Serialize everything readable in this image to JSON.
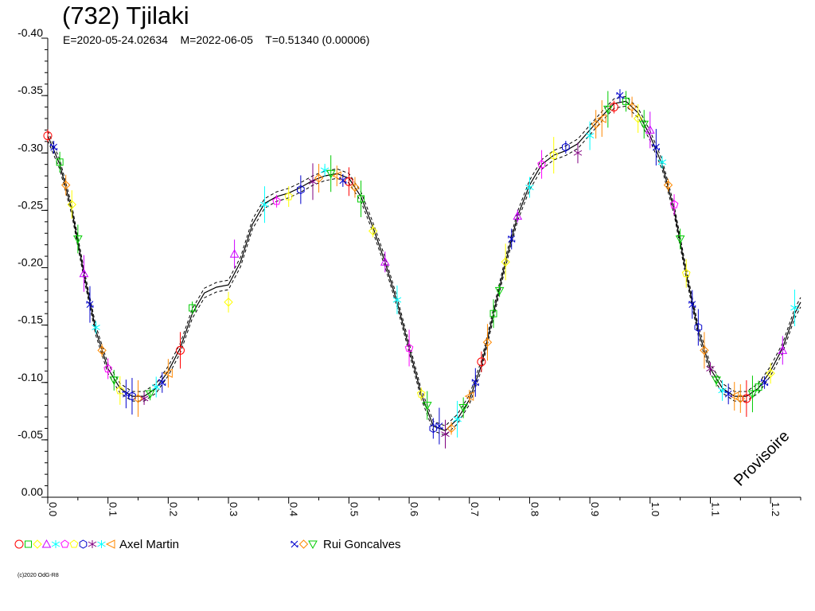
{
  "header": {
    "title": "(732) Tjilaki",
    "epoch": "E=2020-05-24.02634",
    "date": "M=2022-06-05",
    "period": "T=0.51340 (0.00006)"
  },
  "watermark": "Provisoire",
  "copyright": "(c)2020 OdG-R8",
  "legend": [
    {
      "name": "Axel Martin",
      "symbols": [
        "circle",
        "square",
        "diamond",
        "triangle-up",
        "star",
        "pentagon",
        "pentagon",
        "hexagon",
        "star6",
        "star6",
        "triangle-left"
      ],
      "colors": [
        "#ff0000",
        "#00cc00",
        "#ffff00",
        "#cc00ff",
        "#00ffff",
        "#ff00ff",
        "#ffff00",
        "#0000cc",
        "#800080",
        "#00ffff",
        "#ff8800"
      ]
    },
    {
      "name": "Rui Goncalves",
      "symbols": [
        "cross4",
        "diamond",
        "triangle-down"
      ],
      "colors": [
        "#0000cc",
        "#ff8800",
        "#00cc00"
      ]
    }
  ],
  "chart_data": {
    "type": "scatter",
    "title": "(732) Tjilaki",
    "xlabel": "",
    "ylabel": "",
    "xlim": [
      0.0,
      1.25
    ],
    "ylim": [
      0.0,
      -0.4
    ],
    "x_ticks": [
      "0.0",
      "0.1",
      "0.2",
      "0.3",
      "0.4",
      "0.5",
      "0.6",
      "0.7",
      "0.8",
      "0.9",
      "1.0",
      "1.1",
      "1.2"
    ],
    "y_ticks": [
      "-0.40",
      "-0.35",
      "-0.30",
      "-0.25",
      "-0.20",
      "-0.15",
      "-0.10",
      "-0.05",
      "0.00"
    ],
    "grid": false,
    "fit_curve": {
      "name": "fit",
      "x": [
        0.0,
        0.02,
        0.04,
        0.06,
        0.08,
        0.1,
        0.12,
        0.14,
        0.16,
        0.18,
        0.2,
        0.22,
        0.24,
        0.26,
        0.28,
        0.3,
        0.32,
        0.34,
        0.36,
        0.38,
        0.4,
        0.42,
        0.44,
        0.46,
        0.48,
        0.5,
        0.52,
        0.54,
        0.56,
        0.58,
        0.6,
        0.62,
        0.64,
        0.66,
        0.68,
        0.7,
        0.72,
        0.74,
        0.76,
        0.78,
        0.8,
        0.82,
        0.84,
        0.86,
        0.88,
        0.9,
        0.92,
        0.94,
        0.96,
        0.98,
        1.0,
        1.02,
        1.04,
        1.06,
        1.08,
        1.1,
        1.12,
        1.14,
        1.16,
        1.18,
        1.2,
        1.22,
        1.24,
        1.25
      ],
      "y": [
        -0.315,
        -0.29,
        -0.25,
        -0.195,
        -0.145,
        -0.112,
        -0.095,
        -0.088,
        -0.088,
        -0.095,
        -0.11,
        -0.13,
        -0.16,
        -0.178,
        -0.183,
        -0.185,
        -0.205,
        -0.238,
        -0.256,
        -0.262,
        -0.265,
        -0.27,
        -0.276,
        -0.28,
        -0.282,
        -0.278,
        -0.262,
        -0.235,
        -0.205,
        -0.17,
        -0.13,
        -0.09,
        -0.062,
        -0.058,
        -0.068,
        -0.085,
        -0.115,
        -0.16,
        -0.205,
        -0.245,
        -0.272,
        -0.29,
        -0.298,
        -0.302,
        -0.308,
        -0.32,
        -0.332,
        -0.343,
        -0.345,
        -0.335,
        -0.315,
        -0.29,
        -0.25,
        -0.195,
        -0.145,
        -0.112,
        -0.095,
        -0.088,
        -0.088,
        -0.095,
        -0.11,
        -0.13,
        -0.16,
        -0.17
      ]
    },
    "series": [
      {
        "name": "Axel Martin",
        "x": [
          0.0,
          0.02,
          0.04,
          0.06,
          0.08,
          0.1,
          0.12,
          0.14,
          0.16,
          0.18,
          0.2,
          0.22,
          0.24,
          0.3,
          0.31,
          0.36,
          0.38,
          0.4,
          0.42,
          0.44,
          0.46,
          0.48,
          0.5,
          0.52,
          0.54,
          0.56,
          0.58,
          0.6,
          0.62,
          0.64,
          0.66,
          0.68,
          0.7,
          0.72,
          0.74,
          0.76,
          0.78,
          0.8,
          0.82,
          0.84,
          0.86,
          0.88,
          0.9,
          0.92,
          0.94,
          0.96,
          0.98,
          1.0,
          1.02,
          1.04,
          1.06,
          1.08,
          1.1,
          1.12,
          1.14,
          1.16,
          1.18,
          1.2,
          1.22,
          1.24
        ],
        "y": [
          -0.315,
          -0.292,
          -0.255,
          -0.195,
          -0.148,
          -0.112,
          -0.093,
          -0.088,
          -0.086,
          -0.096,
          -0.108,
          -0.128,
          -0.165,
          -0.17,
          -0.212,
          -0.255,
          -0.258,
          -0.262,
          -0.268,
          -0.275,
          -0.285,
          -0.28,
          -0.275,
          -0.26,
          -0.232,
          -0.205,
          -0.172,
          -0.13,
          -0.09,
          -0.06,
          -0.055,
          -0.068,
          -0.088,
          -0.118,
          -0.16,
          -0.205,
          -0.245,
          -0.27,
          -0.29,
          -0.298,
          -0.305,
          -0.3,
          -0.315,
          -0.33,
          -0.34,
          -0.345,
          -0.33,
          -0.32,
          -0.292,
          -0.255,
          -0.195,
          -0.148,
          -0.112,
          -0.093,
          -0.088,
          -0.086,
          -0.096,
          -0.108,
          -0.128,
          -0.165
        ]
      },
      {
        "name": "Rui Goncalves",
        "x": [
          0.01,
          0.03,
          0.05,
          0.07,
          0.09,
          0.11,
          0.13,
          0.15,
          0.17,
          0.19,
          0.45,
          0.47,
          0.49,
          0.51,
          0.63,
          0.65,
          0.67,
          0.69,
          0.71,
          0.73,
          0.75,
          0.77,
          0.91,
          0.93,
          0.95,
          0.97,
          0.99,
          1.01,
          1.03,
          1.05,
          1.07,
          1.09,
          1.11,
          1.13,
          1.15,
          1.17,
          1.19
        ],
        "y": [
          -0.305,
          -0.272,
          -0.225,
          -0.168,
          -0.128,
          -0.102,
          -0.09,
          -0.086,
          -0.09,
          -0.1,
          -0.278,
          -0.282,
          -0.276,
          -0.27,
          -0.08,
          -0.062,
          -0.06,
          -0.078,
          -0.1,
          -0.135,
          -0.18,
          -0.225,
          -0.325,
          -0.338,
          -0.35,
          -0.34,
          -0.325,
          -0.305,
          -0.272,
          -0.225,
          -0.168,
          -0.128,
          -0.102,
          -0.09,
          -0.086,
          -0.09,
          -0.1
        ]
      }
    ]
  }
}
